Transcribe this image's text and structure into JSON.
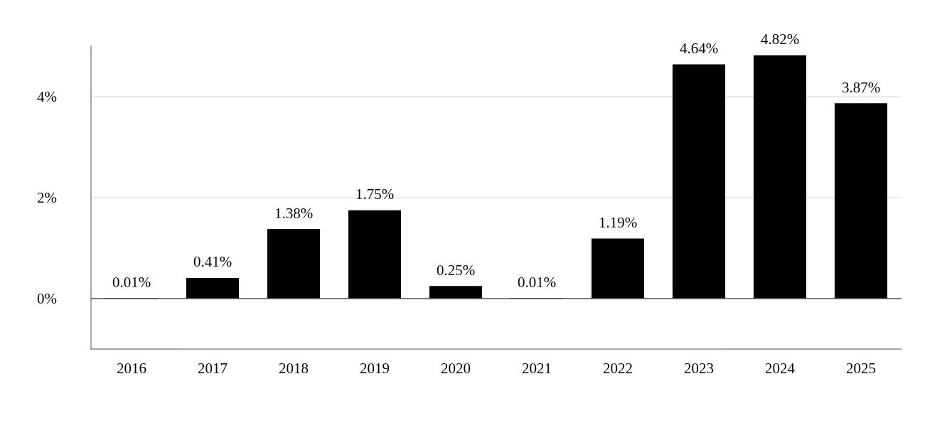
{
  "chart_data": {
    "type": "bar",
    "categories": [
      "2016",
      "2017",
      "2018",
      "2019",
      "2020",
      "2021",
      "2022",
      "2023",
      "2024",
      "2025"
    ],
    "values": [
      0.01,
      0.41,
      1.38,
      1.75,
      0.25,
      0.01,
      1.19,
      4.64,
      4.82,
      3.87
    ],
    "value_labels": [
      "0.01%",
      "0.41%",
      "1.38%",
      "1.75%",
      "0.25%",
      "0.01%",
      "1.19%",
      "4.64%",
      "4.82%",
      "3.87%"
    ],
    "color": "#000000",
    "ylim": [
      -1,
      5
    ],
    "yticks": [
      {
        "value": 0,
        "label": "0%"
      },
      {
        "value": 2,
        "label": "2%"
      },
      {
        "value": 4,
        "label": "4%"
      }
    ],
    "grid": "y",
    "ref_lines": [
      {
        "axis": "y",
        "value": 0,
        "color": "#555555"
      }
    ]
  }
}
